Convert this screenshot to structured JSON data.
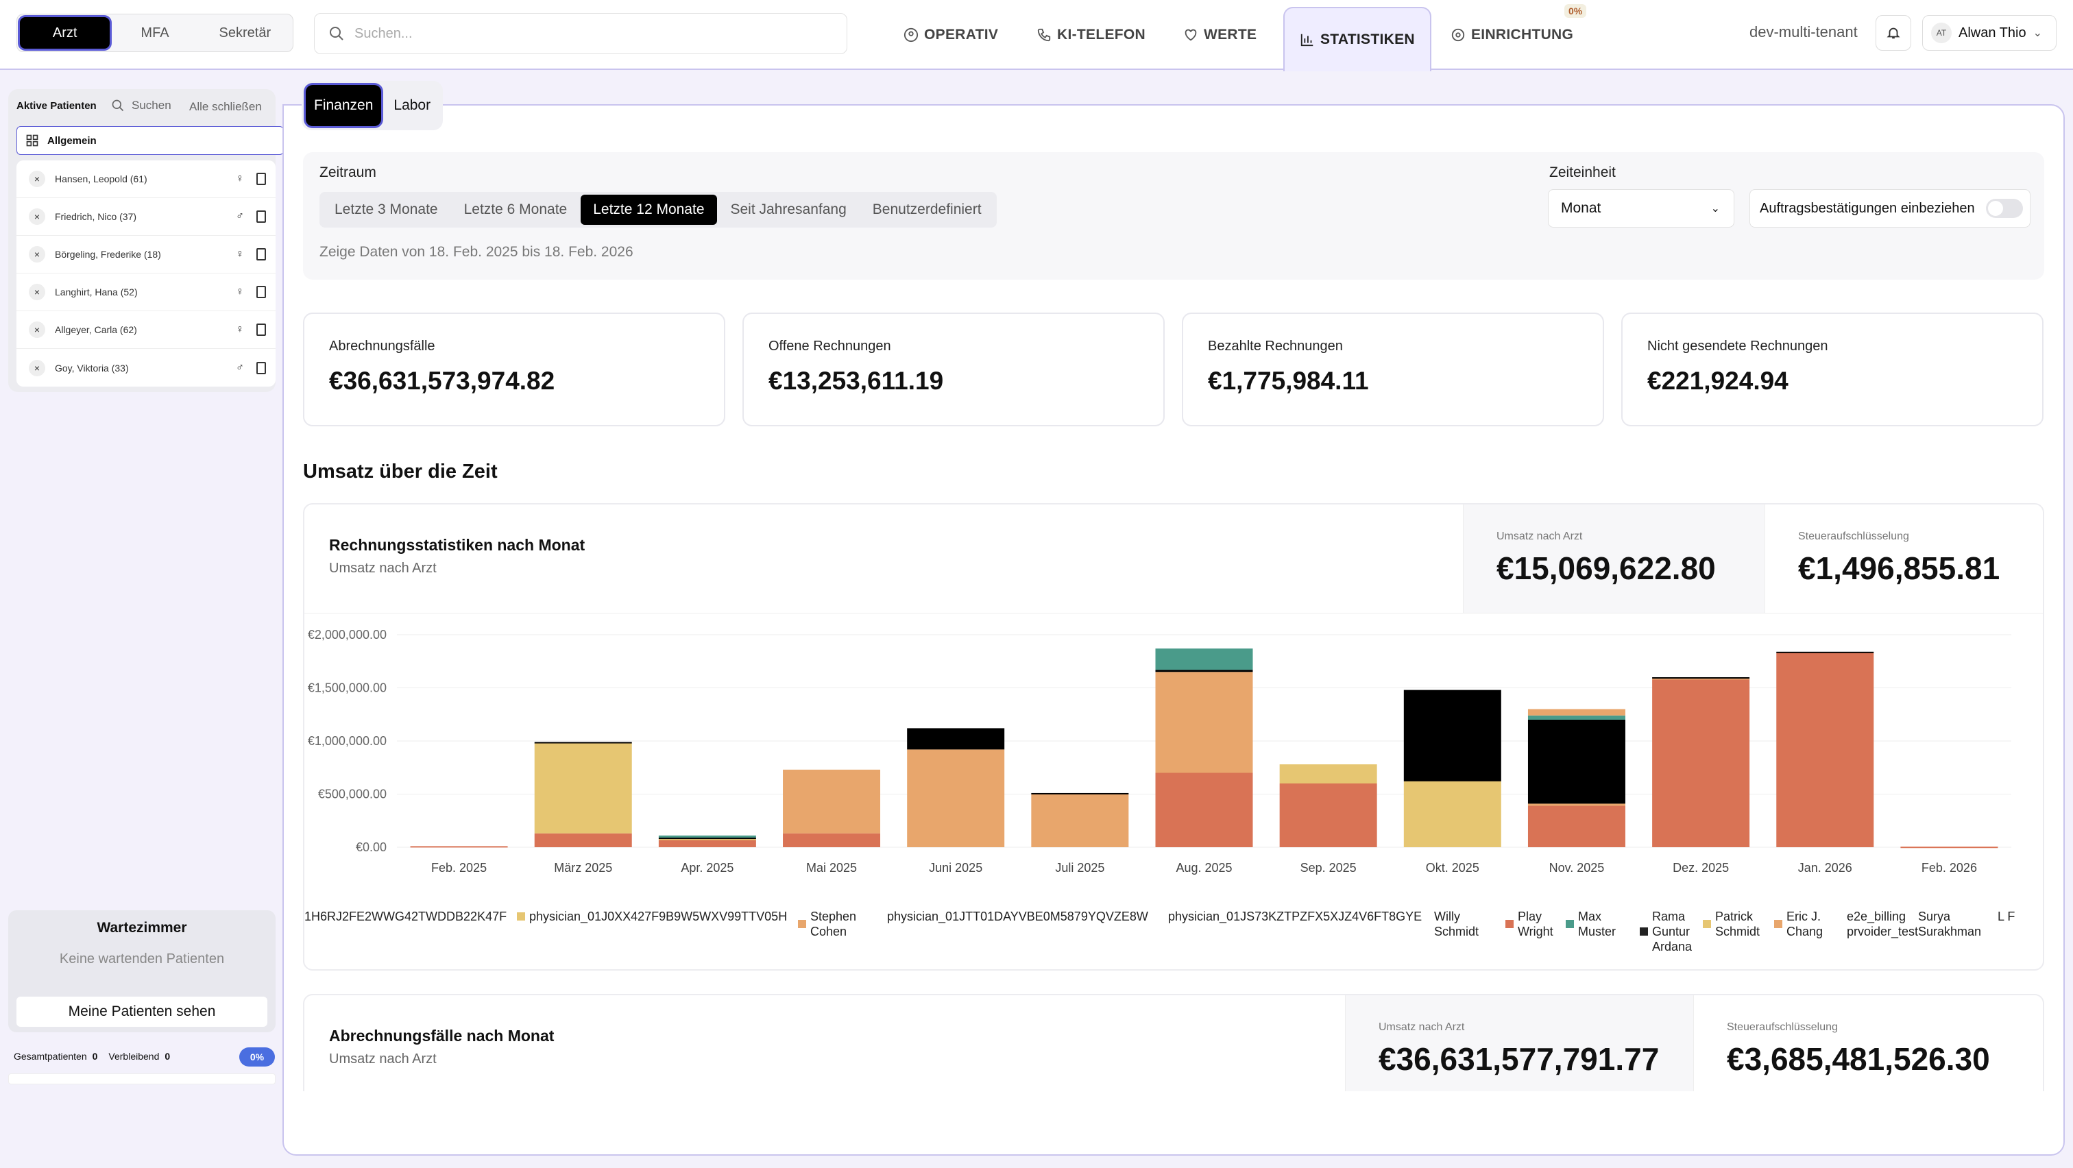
{
  "roles": {
    "items": [
      "Arzt",
      "MFA",
      "Sekretär"
    ],
    "active": "Arzt"
  },
  "search": {
    "placeholder": "Suchen..."
  },
  "nav": {
    "items": [
      {
        "label": "OPERATIV",
        "icon": "user-circle-icon"
      },
      {
        "label": "KI-TELEFON",
        "icon": "phone-icon"
      },
      {
        "label": "WERTE",
        "icon": "heart-pulse-icon"
      },
      {
        "label": "STATISTIKEN",
        "icon": "bar-chart-icon"
      },
      {
        "label": "EINRICHTUNG",
        "icon": "settings-icon"
      }
    ],
    "active": "STATISTIKEN",
    "badge": "0%"
  },
  "tenant": "dev-multi-tenant",
  "user": {
    "initials": "AT",
    "name": "Alwan Thio"
  },
  "sidebar": {
    "title": "Aktive Patienten",
    "search_label": "Suchen",
    "close_all": "Alle schließen",
    "group": "Allgemein",
    "patients": [
      {
        "name": "Hansen, Leopold (61)",
        "gender": "♀"
      },
      {
        "name": "Friedrich, Nico (37)",
        "gender": "♂"
      },
      {
        "name": "Börgeling, Frederike (18)",
        "gender": "♀"
      },
      {
        "name": "Langhirt, Hana (52)",
        "gender": "♀"
      },
      {
        "name": "Allgeyer, Carla (62)",
        "gender": "♀"
      },
      {
        "name": "Goy, Viktoria (33)",
        "gender": "♂"
      }
    ],
    "waiting_title": "Wartezimmer",
    "waiting_empty": "Keine wartenden Patienten",
    "my_patients": "Meine Patienten sehen",
    "total_label": "Gesamtpatienten",
    "total": "0",
    "remaining_label": "Verbleibend",
    "remaining": "0",
    "progress": "0%"
  },
  "tabs": {
    "items": [
      "Finanzen",
      "Labor"
    ],
    "active": "Finanzen"
  },
  "filter": {
    "period_label": "Zeitraum",
    "periods": [
      "Letzte 3 Monate",
      "Letzte 6 Monate",
      "Letzte 12 Monate",
      "Seit Jahresanfang",
      "Benutzerdefiniert"
    ],
    "active_period": "Letzte 12 Monate",
    "unit_label": "Zeiteinheit",
    "unit": "Monat",
    "include_orders": "Auftragsbestätigungen einbeziehen",
    "range_text": "Zeige Daten von 18. Feb. 2025 bis 18. Feb. 2026"
  },
  "kpis": [
    {
      "label": "Abrechnungsfälle",
      "value": "€36,631,573,974.82"
    },
    {
      "label": "Offene Rechnungen",
      "value": "€13,253,611.19"
    },
    {
      "label": "Bezahlte Rechnungen",
      "value": "€1,775,984.11"
    },
    {
      "label": "Nicht gesendete Rechnungen",
      "value": "€221,924.94"
    }
  ],
  "section_title": "Umsatz über die Zeit",
  "card1": {
    "title": "Rechnungsstatistiken nach Monat",
    "subtitle": "Umsatz nach Arzt",
    "m1_label": "Umsatz nach Arzt",
    "m1_value": "€15,069,622.80",
    "m2_label": "Steueraufschlüsselung",
    "m2_value": "€1,496,855.81"
  },
  "card2": {
    "title": "Abrechnungsfälle nach Monat",
    "subtitle": "Umsatz nach Arzt",
    "m1_label": "Umsatz nach Arzt",
    "m1_value": "€36,631,577,791.77",
    "m2_label": "Steueraufschlüsselung",
    "m2_value": "€3,685,481,526.30"
  },
  "colors": {
    "accent": "#5b5bd6",
    "orange": "#e8a66c",
    "red": "#d97355",
    "yellow": "#e6c672",
    "teal": "#4a9b8a",
    "black": "#000000"
  },
  "chart_data": {
    "type": "bar",
    "stacked": true,
    "categories": [
      "Feb. 2025",
      "März 2025",
      "Apr. 2025",
      "Mai 2025",
      "Juni 2025",
      "Juli 2025",
      "Aug. 2025",
      "Sep. 2025",
      "Okt. 2025",
      "Nov. 2025",
      "Dez. 2025",
      "Jan. 2026",
      "Feb. 2026"
    ],
    "yticks": [
      "€0.00",
      "€500,000.00",
      "€1,000,000.00",
      "€1,500,000.00",
      "€2,000,000.00"
    ],
    "ylim": [
      0,
      2000000
    ],
    "series": [
      {
        "color": "#d97355",
        "values": [
          10000,
          130000,
          70000,
          130000,
          0,
          0,
          700000,
          600000,
          0,
          390000,
          1580000,
          1830000,
          5000
        ]
      },
      {
        "color": "#e8a66c",
        "values": [
          0,
          0,
          0,
          600000,
          920000,
          500000,
          950000,
          0,
          0,
          20000,
          10000,
          0,
          0
        ]
      },
      {
        "color": "#e6c672",
        "values": [
          0,
          850000,
          10000,
          0,
          0,
          0,
          0,
          180000,
          620000,
          0,
          0,
          0,
          0
        ]
      },
      {
        "color": "#000000",
        "values": [
          0,
          10000,
          10000,
          0,
          200000,
          10000,
          20000,
          0,
          860000,
          790000,
          10000,
          10000,
          0
        ]
      },
      {
        "color": "#4a9b8a",
        "values": [
          0,
          0,
          20000,
          0,
          0,
          0,
          200000,
          0,
          0,
          40000,
          0,
          0,
          0
        ]
      },
      {
        "color": "#e8a66c",
        "values": [
          0,
          0,
          0,
          0,
          0,
          0,
          0,
          0,
          0,
          60000,
          0,
          0,
          0
        ]
      }
    ],
    "legend": [
      {
        "name": "01H6RJ2FE2WWG42TWDDB22K47F",
        "color": ""
      },
      {
        "name": "physician_01J0XX427F9B9W5WXV99TTV05H",
        "color": "#e6c672"
      },
      {
        "name": "Stephen Cohen",
        "color": "#e8a66c"
      },
      {
        "name": "physician_01JTT01DAYVBE0M5879YQVZE8W",
        "color": ""
      },
      {
        "name": "physician_01JS73KZTPZFX5XJZ4V6FT8GYE",
        "color": ""
      },
      {
        "name": "Willy Schmidt",
        "color": ""
      },
      {
        "name": "Play Wright",
        "color": "#d97355"
      },
      {
        "name": "Max Muster",
        "color": "#4a9b8a"
      },
      {
        "name": "Rama Guntur Ardana",
        "color": "#222222"
      },
      {
        "name": "Patrick Schmidt",
        "color": "#e6c672"
      },
      {
        "name": "Eric J. Chang",
        "color": "#e8a66c"
      },
      {
        "name": "e2e_billing prvoider_test",
        "color": ""
      },
      {
        "name": "Surya Surakhman",
        "color": ""
      },
      {
        "name": "L F",
        "color": ""
      }
    ]
  }
}
